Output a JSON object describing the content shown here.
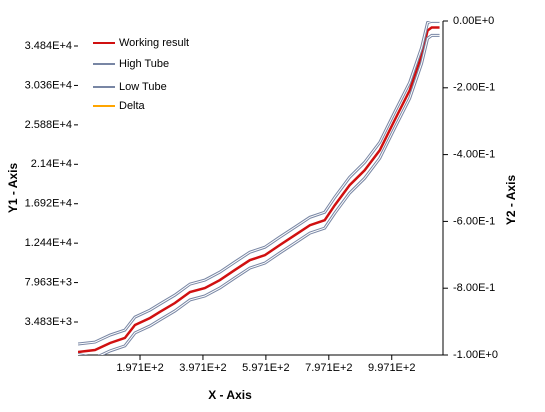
{
  "chart_data": {
    "type": "line",
    "x_label": "X - Axis",
    "y_label": "Y1 - Axis",
    "y2_label": "Y2 - Axis",
    "xlim": [
      0,
      1160
    ],
    "ylim": [
      -266,
      37680
    ],
    "y2lim": [
      -1,
      0
    ],
    "xticks": [
      {
        "value": 197.1,
        "label": "1.971E+2"
      },
      {
        "value": 397.1,
        "label": "3.971E+2"
      },
      {
        "value": 597.1,
        "label": "5.971E+2"
      },
      {
        "value": 797.1,
        "label": "7.971E+2"
      },
      {
        "value": 997.1,
        "label": "9.971E+2"
      }
    ],
    "yticks": [
      {
        "value": 3483,
        "label": "3.483E+3"
      },
      {
        "value": 7963,
        "label": "7.963E+3"
      },
      {
        "value": 12440,
        "label": "1.244E+4"
      },
      {
        "value": 16920,
        "label": "1.692E+4"
      },
      {
        "value": 21400,
        "label": "2.14E+4"
      },
      {
        "value": 25880,
        "label": "2.588E+4"
      },
      {
        "value": 30360,
        "label": "3.036E+4"
      },
      {
        "value": 34840,
        "label": "3.484E+4"
      }
    ],
    "y2ticks": [
      {
        "value": -1,
        "label": "-1.00E+0"
      },
      {
        "value": -0.8,
        "label": "-8.00E-1"
      },
      {
        "value": -0.6,
        "label": "-6.00E-1"
      },
      {
        "value": -0.4,
        "label": "-4.00E-1"
      },
      {
        "value": -0.2,
        "label": "-2.00E-1"
      },
      {
        "value": 0,
        "label": "0.00E+0"
      }
    ],
    "x": [
      0,
      54,
      102,
      149,
      181,
      229,
      260,
      308,
      356,
      403,
      451,
      498,
      546,
      594,
      641,
      689,
      737,
      784,
      816,
      863,
      911,
      959,
      1006,
      1054,
      1092,
      1111,
      1124,
      1149
    ],
    "series": [
      {
        "name": "Working result",
        "color": "#d01010",
        "values": [
          80,
          300,
          1100,
          1670,
          3140,
          3940,
          4620,
          5640,
          6890,
          7340,
          8250,
          9380,
          10510,
          11080,
          12220,
          13350,
          14480,
          15050,
          16750,
          19020,
          20720,
          22990,
          26390,
          29790,
          33760,
          36600,
          36940,
          36940
        ]
      },
      {
        "name": "High Tube",
        "color": "#7886a4",
        "values": [
          980,
          1200,
          2000,
          2570,
          4040,
          4840,
          5520,
          6540,
          7790,
          8240,
          9150,
          10280,
          11410,
          11980,
          13120,
          14250,
          15380,
          15950,
          17650,
          19920,
          21620,
          23890,
          27290,
          30690,
          34660,
          37500,
          37640,
          37640
        ]
      },
      {
        "name": "Low Tube",
        "color": "#7886a4",
        "values": [
          -200,
          -600,
          200,
          770,
          2240,
          3040,
          3720,
          4740,
          5990,
          6440,
          7350,
          8480,
          9610,
          10180,
          11320,
          12450,
          13580,
          14150,
          15850,
          18120,
          19820,
          22090,
          25490,
          28890,
          32860,
          35700,
          36040,
          36040
        ]
      },
      {
        "name": "Delta",
        "color": "#ffa500",
        "axis": "y2",
        "values": [
          null,
          null,
          null,
          null,
          null,
          null,
          null,
          null,
          null,
          null,
          null,
          null,
          null,
          null,
          null,
          null,
          null,
          null,
          null,
          null,
          null,
          null,
          null,
          null,
          null,
          null,
          null,
          null
        ]
      }
    ]
  }
}
